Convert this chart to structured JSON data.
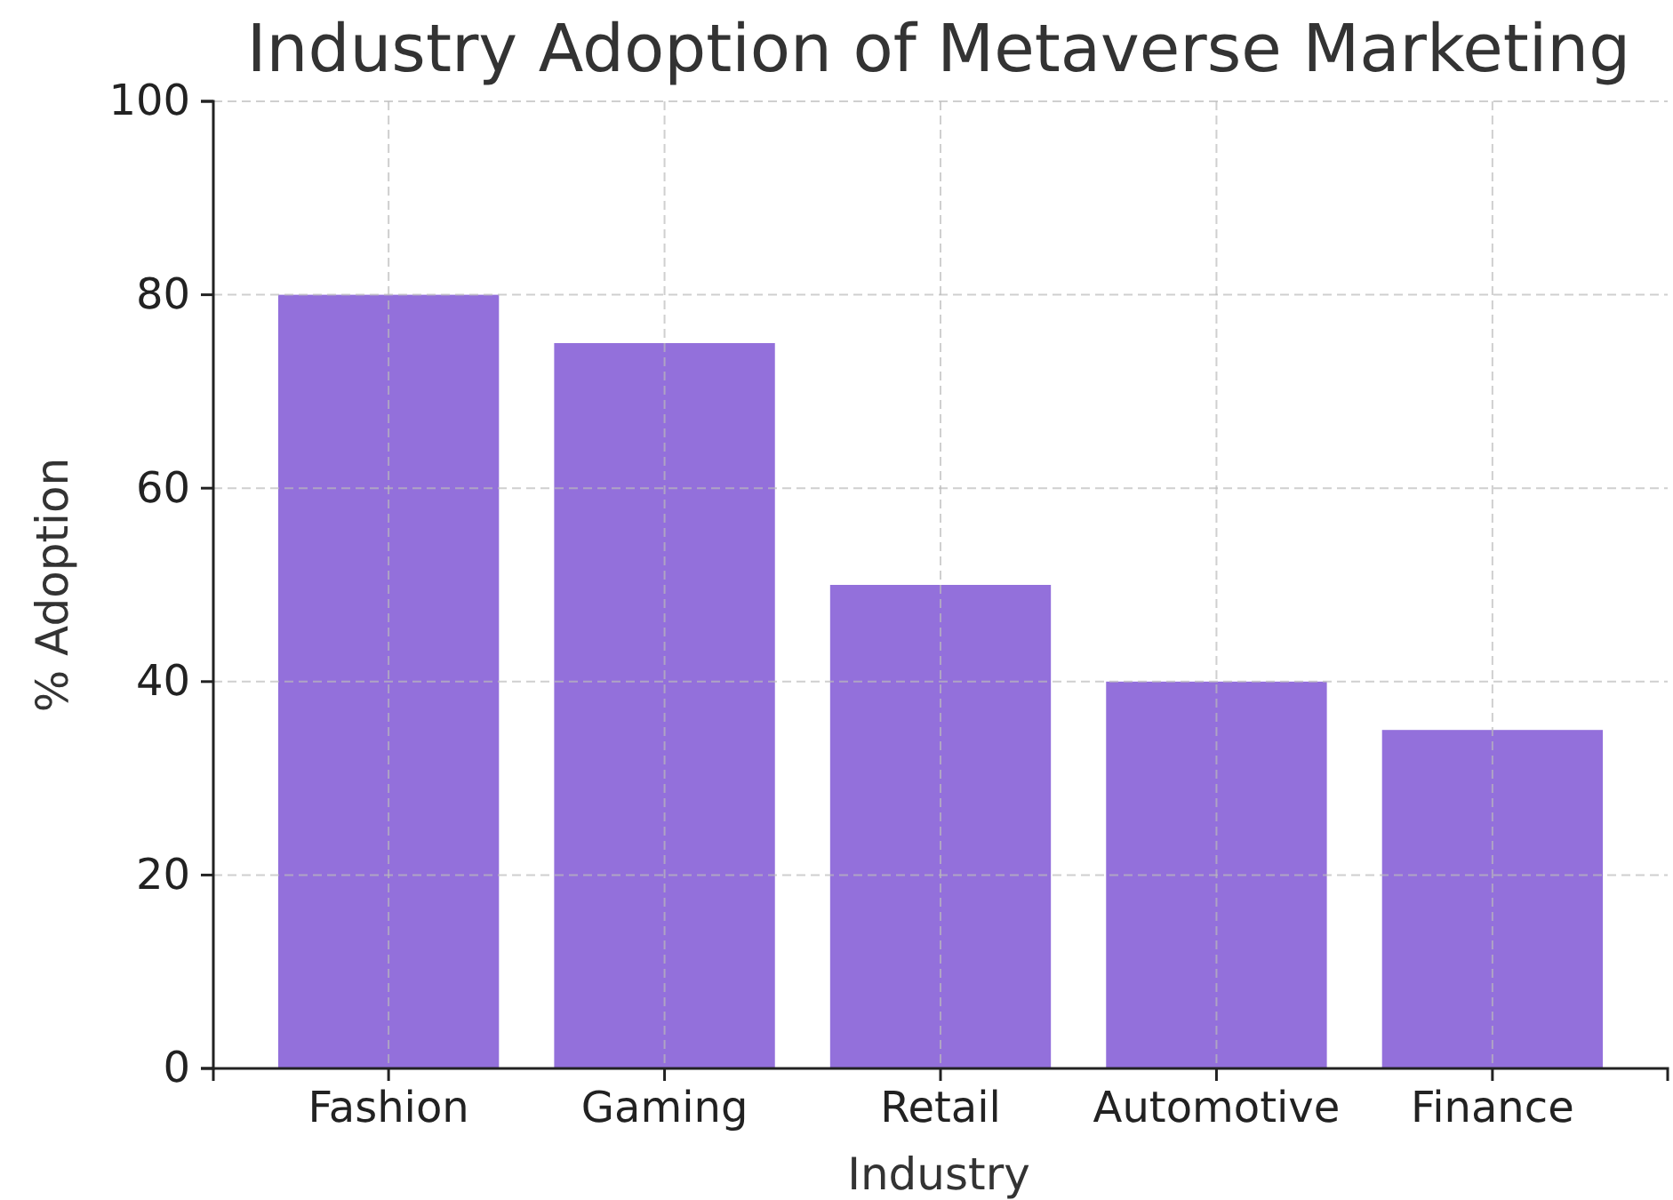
{
  "chart_data": {
    "type": "bar",
    "title": "Industry Adoption of Metaverse Marketing",
    "xlabel": "Industry",
    "ylabel": "% Adoption",
    "categories": [
      "Fashion",
      "Gaming",
      "Retail",
      "Automotive",
      "Finance"
    ],
    "values": [
      80,
      75,
      50,
      40,
      35
    ],
    "color": "#9370db",
    "ylim": [
      0,
      100
    ],
    "yticks": [
      0,
      20,
      40,
      60,
      80,
      100
    ],
    "grid": true
  }
}
